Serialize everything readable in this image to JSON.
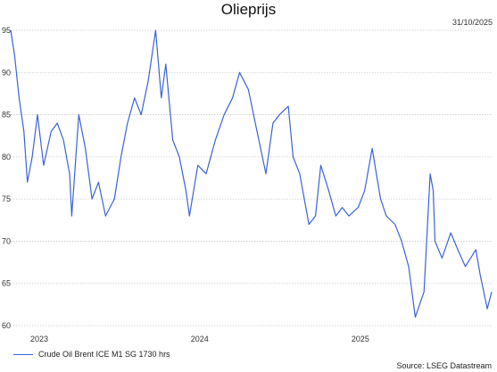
{
  "header": {
    "title": "Olieprijs",
    "date": "31/10/2025"
  },
  "footer": {
    "legend_label": "Crude Oil Brent ICE M1 SG 1730 hrs",
    "source": "Source: LSEG Datastream"
  },
  "chart_data": {
    "type": "line",
    "title": "Olieprijs",
    "xlabel": "",
    "ylabel": "",
    "ylim": [
      60,
      95
    ],
    "yticks": [
      60,
      65,
      70,
      75,
      80,
      85,
      90,
      95
    ],
    "xlim": [
      "2022-11-01",
      "2025-10-31"
    ],
    "xticks": [
      {
        "label": "2023",
        "date": "2023-01-01"
      },
      {
        "label": "2024",
        "date": "2024-01-01"
      },
      {
        "label": "2025",
        "date": "2025-01-01"
      }
    ],
    "grid": true,
    "legend_position": "bottom-left",
    "color": "#3a63d8",
    "series": [
      {
        "name": "Crude Oil Brent ICE M1 SG 1730 hrs",
        "x": [
          "2022-11-01",
          "2022-11-10",
          "2022-11-20",
          "2022-12-01",
          "2022-12-09",
          "2022-12-20",
          "2023-01-01",
          "2023-01-15",
          "2023-02-01",
          "2023-02-15",
          "2023-03-01",
          "2023-03-15",
          "2023-03-20",
          "2023-04-05",
          "2023-04-20",
          "2023-05-05",
          "2023-05-20",
          "2023-06-05",
          "2023-06-25",
          "2023-07-10",
          "2023-07-25",
          "2023-08-10",
          "2023-08-25",
          "2023-09-10",
          "2023-09-27",
          "2023-10-10",
          "2023-10-20",
          "2023-11-05",
          "2023-11-20",
          "2023-12-05",
          "2023-12-13",
          "2024-01-01",
          "2024-01-20",
          "2024-02-10",
          "2024-03-01",
          "2024-03-20",
          "2024-04-05",
          "2024-04-25",
          "2024-05-15",
          "2024-06-04",
          "2024-06-20",
          "2024-07-05",
          "2024-07-25",
          "2024-08-05",
          "2024-08-20",
          "2024-09-10",
          "2024-09-25",
          "2024-10-07",
          "2024-10-25",
          "2024-11-10",
          "2024-11-25",
          "2024-12-10",
          "2024-12-31",
          "2025-01-15",
          "2025-02-01",
          "2025-02-20",
          "2025-03-05",
          "2025-03-25",
          "2025-04-09",
          "2025-04-25",
          "2025-05-10",
          "2025-05-30",
          "2025-06-13",
          "2025-06-20",
          "2025-06-24",
          "2025-07-10",
          "2025-07-30",
          "2025-08-15",
          "2025-09-01",
          "2025-09-25",
          "2025-10-05",
          "2025-10-21",
          "2025-10-31"
        ],
        "values": [
          95,
          92,
          87,
          83,
          77,
          80,
          85,
          79,
          83,
          84,
          82,
          78,
          73,
          85,
          81,
          75,
          77,
          73,
          75,
          80,
          84,
          87,
          85,
          89,
          95,
          87,
          91,
          82,
          80,
          76,
          73,
          79,
          78,
          82,
          85,
          87,
          90,
          88,
          83,
          78,
          84,
          85,
          86,
          80,
          78,
          72,
          73,
          79,
          76,
          73,
          74,
          73,
          74,
          76,
          81,
          75,
          73,
          72,
          70,
          67,
          61,
          64,
          78,
          76,
          70,
          68,
          71,
          69,
          67,
          69,
          66,
          62,
          64
        ]
      }
    ]
  }
}
